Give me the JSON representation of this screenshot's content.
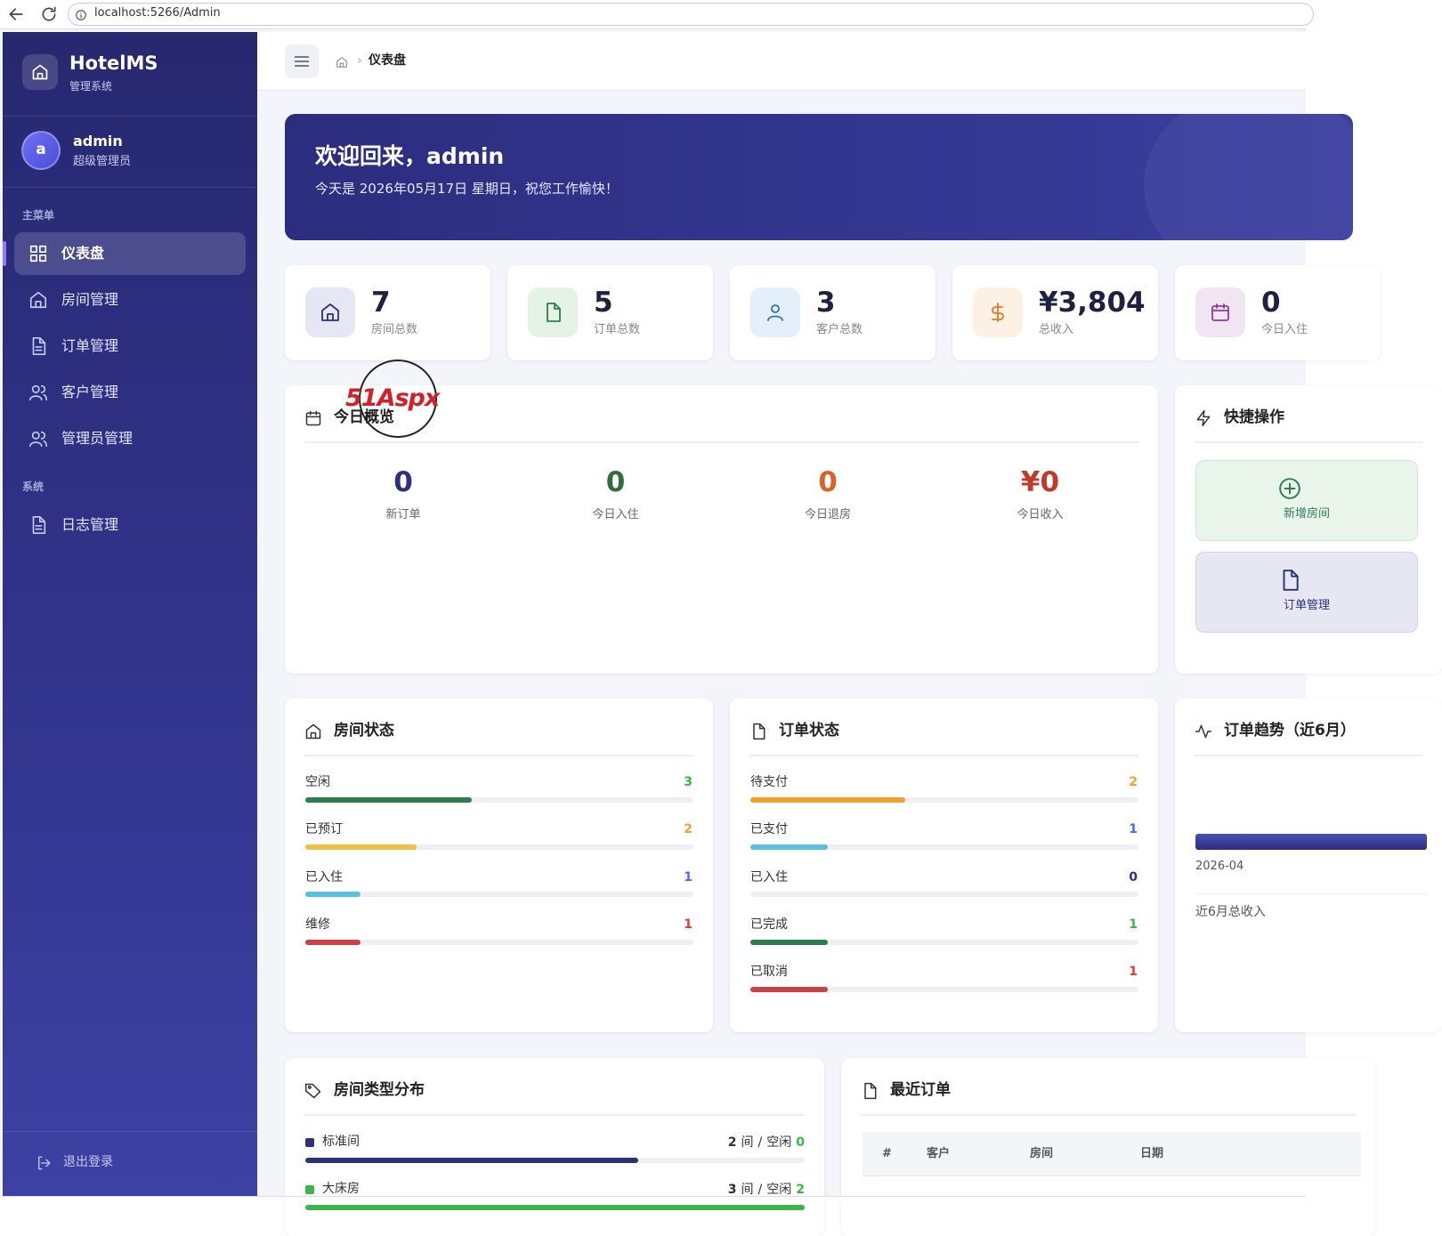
{
  "browser": {
    "url": "localhost:5266/Admin"
  },
  "sidebar": {
    "brand": "HotelMS",
    "brand_sub": "管理系统",
    "user": {
      "avatar": "a",
      "name": "admin",
      "role": "超级管理员"
    },
    "sections": [
      {
        "title": "主菜单",
        "items": [
          "仪表盘",
          "房间管理",
          "订单管理",
          "客户管理",
          "管理员管理"
        ]
      },
      {
        "title": "系统",
        "items": [
          "日志管理"
        ]
      }
    ],
    "active": {
      "section": 0,
      "item": 0
    },
    "logout": "退出登录"
  },
  "header": {
    "breadcrumb": "仪表盘"
  },
  "welcome": {
    "title": "欢迎回来，admin",
    "subtitle": "今天是 2026年05月17日 星期日，祝您工作愉快！"
  },
  "stats": [
    {
      "value": 7,
      "label": "房间总数",
      "bg": "#e6e7f5",
      "fg": "#2d2f7f"
    },
    {
      "value": 5,
      "label": "订单总数",
      "bg": "#e5f2e6",
      "fg": "#2e7d4f"
    },
    {
      "value": 3,
      "label": "客户总数",
      "bg": "#e3effa",
      "fg": "#3a6fb0"
    },
    {
      "value": "¥3,804",
      "label": "总收入",
      "bg": "#fdf1e3",
      "fg": "#e0782a"
    },
    {
      "value": 0,
      "label": "今日入住",
      "bg": "#f1e5f4",
      "fg": "#8e3aa8"
    }
  ],
  "today": {
    "title": "今日概览",
    "items": [
      {
        "value": 0,
        "label": "新订单",
        "color": "#2d2f7f"
      },
      {
        "value": 0,
        "label": "今日入住",
        "color": "#2e6e3a"
      },
      {
        "value": 0,
        "label": "今日退房",
        "color": "#d9622b"
      },
      {
        "value": "¥0",
        "label": "今日收入",
        "color": "#c0392b"
      }
    ]
  },
  "quick": {
    "title": "快捷操作",
    "items": [
      "新增房间",
      "订单管理"
    ]
  },
  "room_status": {
    "title": "房间状态",
    "items": [
      {
        "label": "空闲",
        "count": 3,
        "color": "#2e7d4f",
        "num_color": "#3bb54a"
      },
      {
        "label": "已预订",
        "count": 2,
        "color": "#f0c040",
        "num_color": "#f0a030"
      },
      {
        "label": "已入住",
        "count": 1,
        "color": "#5bc0de",
        "num_color": "#4a6cf7"
      },
      {
        "label": "维修",
        "count": 1,
        "color": "#c9424a",
        "num_color": "#e03a3a"
      }
    ]
  },
  "order_status": {
    "title": "订单状态",
    "items": [
      {
        "label": "待支付",
        "count": 2,
        "color": "#f0a030",
        "num_color": "#f0a030"
      },
      {
        "label": "已支付",
        "count": 1,
        "color": "#5bc0de",
        "num_color": "#4a6cf7"
      },
      {
        "label": "已入住",
        "count": 0,
        "color": "#5bc0de",
        "num_color": "#2d2f7f"
      },
      {
        "label": "已完成",
        "count": 1,
        "color": "#2e7d4f",
        "num_color": "#3bb54a"
      },
      {
        "label": "已取消",
        "count": 1,
        "color": "#c9424a",
        "num_color": "#e03a3a"
      }
    ]
  },
  "trend": {
    "title": "订单趋势（近6月）",
    "month": "2026-04",
    "total_label": "近6月总收入"
  },
  "room_types": {
    "title": "房间类型分布",
    "unit": "间",
    "separator": "/",
    "free_label": "空闲",
    "items": [
      {
        "name": "标准间",
        "count": 2,
        "free": 0,
        "color": "#2d2f7f"
      },
      {
        "name": "大床房",
        "count": 3,
        "free": 2,
        "color": "#3bb54a"
      }
    ]
  },
  "recent_orders": {
    "title": "最近订单",
    "columns": [
      "#",
      "客户",
      "房间",
      "日期"
    ]
  },
  "watermark": {
    "text": "51Aspx"
  }
}
